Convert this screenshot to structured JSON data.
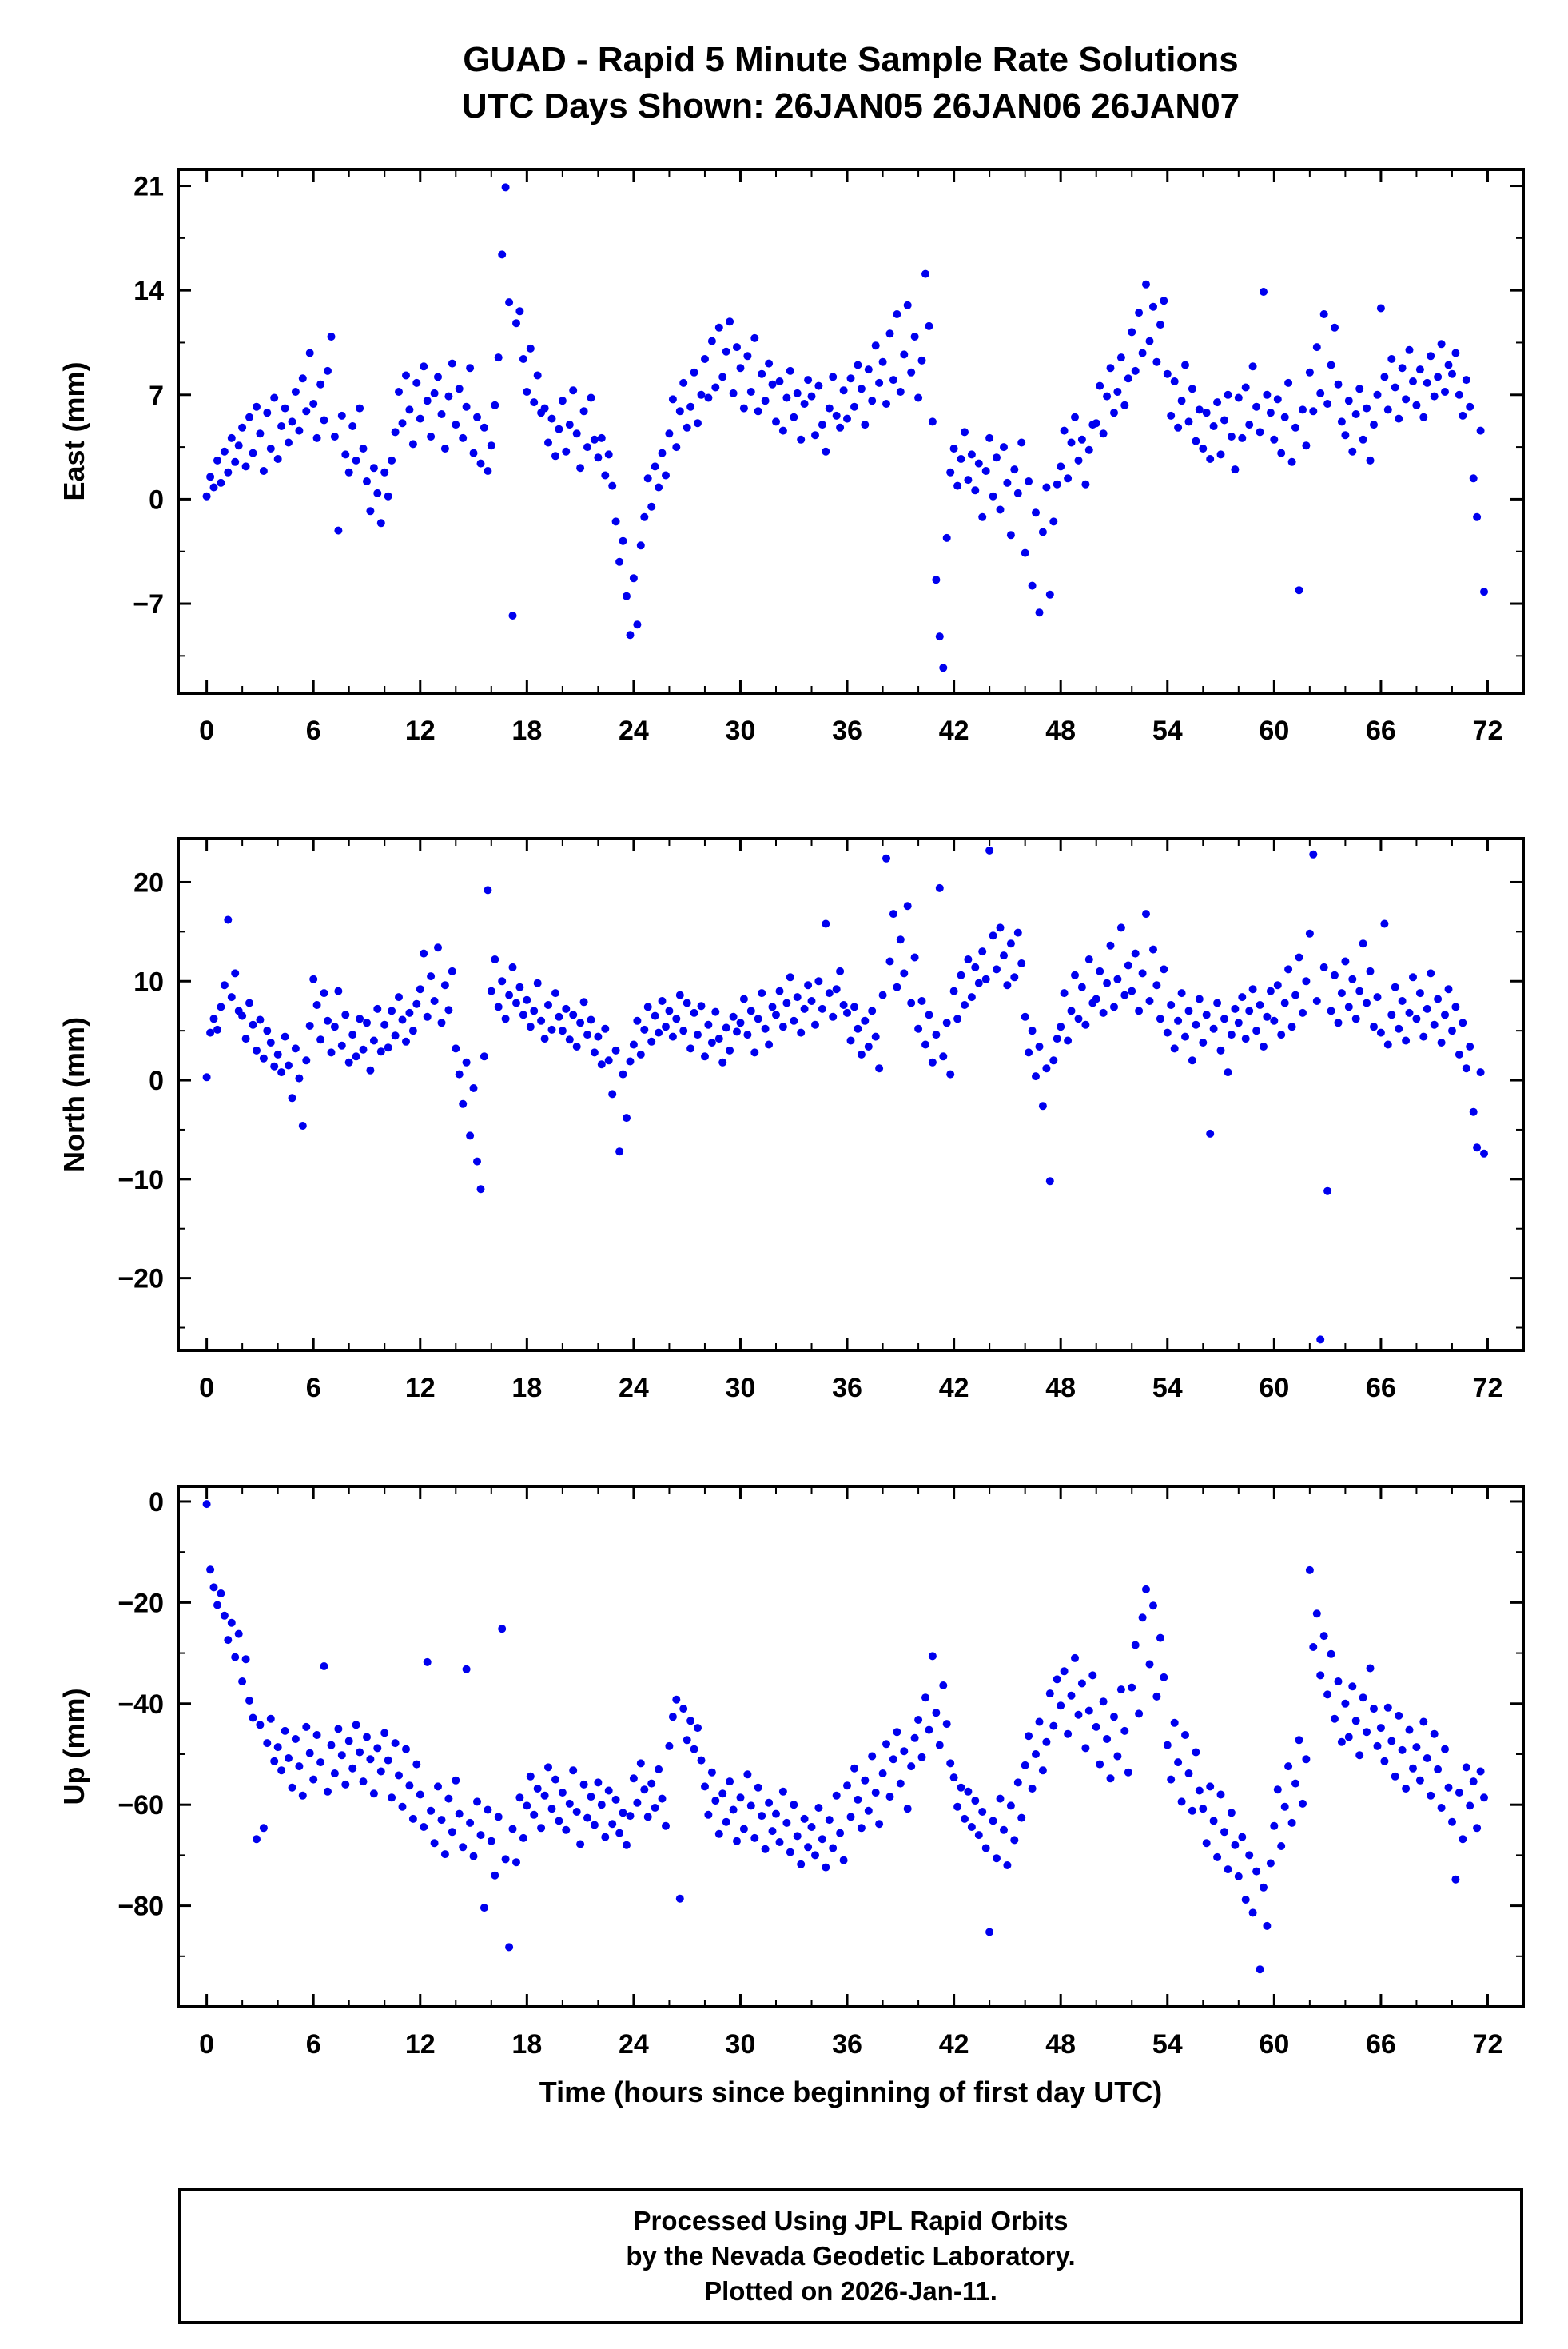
{
  "title": {
    "line1": "GUAD - Rapid 5 Minute Sample Rate Solutions",
    "line2": "UTC Days Shown:  26JAN05 26JAN06 26JAN07"
  },
  "xlabel": "Time (hours since beginning of first day UTC)",
  "footer": {
    "lines": [
      "Processed Using JPL Rapid Orbits",
      "by the Nevada Geodetic Laboratory.",
      "Plotted on 2026-Jan-11."
    ]
  },
  "style": {
    "point_color": "#0000ee",
    "point_radius": 5,
    "frame_color": "#000000",
    "marker": "filled-circle",
    "grid": false
  },
  "chart_data": [
    {
      "type": "scatter",
      "name": "east",
      "ylabel": "East (mm)",
      "xlim": [
        -1.6,
        74
      ],
      "ylim": [
        -13,
        22.1
      ],
      "x_ticks": [
        0,
        6,
        12,
        18,
        24,
        30,
        36,
        42,
        48,
        54,
        60,
        66,
        72
      ],
      "x_minor": 2,
      "y_ticks": [
        -7,
        0,
        7,
        14,
        21
      ],
      "y_minor": 3.5,
      "x_start": 0,
      "x_step": 0.2,
      "values": [
        0.2,
        1.5,
        0.8,
        2.6,
        1.1,
        3.2,
        1.8,
        4.1,
        2.5,
        3.6,
        4.8,
        2.2,
        5.5,
        3.1,
        6.2,
        4.4,
        1.9,
        5.8,
        3.4,
        6.8,
        2.7,
        4.9,
        6.1,
        3.8,
        5.2,
        7.2,
        4.6,
        8.1,
        5.9,
        9.8,
        6.4,
        4.1,
        7.7,
        5.3,
        8.6,
        10.9,
        4.2,
        -2.1,
        5.6,
        3.0,
        1.8,
        4.9,
        2.6,
        6.1,
        3.4,
        1.2,
        -0.8,
        2.1,
        0.4,
        -1.6,
        1.8,
        0.2,
        2.6,
        4.5,
        7.2,
        5.1,
        8.3,
        6.0,
        3.7,
        7.8,
        5.4,
        8.9,
        6.6,
        4.2,
        7.1,
        8.2,
        5.7,
        3.4,
        6.9,
        9.1,
        5.0,
        7.4,
        4.1,
        6.2,
        8.8,
        3.1,
        5.5,
        2.4,
        4.8,
        1.9,
        3.6,
        6.3,
        9.5,
        16.4,
        20.9,
        13.2,
        -7.8,
        11.8,
        12.6,
        9.4,
        7.2,
        10.1,
        6.5,
        8.3,
        5.8,
        6.1,
        3.8,
        5.4,
        2.9,
        4.7,
        6.6,
        3.2,
        5.0,
        7.3,
        4.4,
        2.1,
        5.9,
        3.5,
        6.8,
        4.0,
        2.8,
        4.1,
        1.6,
        3.0,
        0.9,
        -1.5,
        -4.2,
        -2.8,
        -6.5,
        -9.1,
        -5.3,
        -8.4,
        -3.1,
        -1.2,
        1.4,
        -0.5,
        2.2,
        0.8,
        3.1,
        1.6,
        4.4,
        6.7,
        3.5,
        5.9,
        7.8,
        4.8,
        6.2,
        8.5,
        5.1,
        7.0,
        9.4,
        6.8,
        10.6,
        7.5,
        11.5,
        8.2,
        9.9,
        11.9,
        7.1,
        10.2,
        8.8,
        6.1,
        9.6,
        7.2,
        10.8,
        5.9,
        8.4,
        6.6,
        9.1,
        7.7,
        5.2,
        7.9,
        4.6,
        6.8,
        8.6,
        5.5,
        7.1,
        4.0,
        6.4,
        8.0,
        6.9,
        4.3,
        7.6,
        5.0,
        3.2,
        6.1,
        8.2,
        5.6,
        4.8,
        7.3,
        5.4,
        8.1,
        6.2,
        9.0,
        7.4,
        5.0,
        8.7,
        6.6,
        10.3,
        7.8,
        9.2,
        6.4,
        11.1,
        8.0,
        12.4,
        7.2,
        9.7,
        13.0,
        8.5,
        10.9,
        6.8,
        9.3,
        15.1,
        11.6,
        5.2,
        -5.4,
        -9.2,
        -11.3,
        -2.6,
        1.8,
        3.4,
        0.9,
        2.7,
        4.5,
        1.3,
        3.0,
        0.6,
        2.4,
        -1.2,
        1.9,
        4.1,
        0.2,
        2.8,
        -0.7,
        3.5,
        1.1,
        -2.4,
        2.0,
        0.4,
        3.8,
        -3.6,
        1.2,
        -5.8,
        -0.9,
        -7.6,
        -2.2,
        0.8,
        -6.4,
        -1.5,
        1.0,
        2.2,
        4.6,
        1.4,
        3.8,
        5.5,
        2.6,
        4.0,
        1.0,
        3.3,
        5.0,
        5.1,
        7.6,
        4.4,
        6.9,
        8.8,
        5.8,
        7.2,
        9.5,
        6.3,
        8.1,
        11.2,
        8.6,
        12.5,
        9.8,
        14.4,
        10.6,
        12.9,
        9.2,
        11.7,
        13.3,
        8.4,
        5.6,
        7.9,
        4.8,
        6.6,
        9.0,
        5.2,
        7.4,
        3.9,
        6.0,
        3.4,
        5.8,
        2.7,
        4.9,
        6.5,
        3.0,
        5.3,
        7.0,
        4.2,
        2.0,
        6.8,
        4.1,
        7.5,
        5.0,
        8.9,
        6.2,
        4.5,
        13.9,
        7.0,
        5.8,
        4.0,
        6.7,
        3.1,
        5.5,
        7.8,
        2.5,
        4.8,
        -6.1,
        6.0,
        3.6,
        8.5,
        5.9,
        10.2,
        7.1,
        12.4,
        6.4,
        9.0,
        11.5,
        7.7,
        5.2,
        4.3,
        6.6,
        3.2,
        5.7,
        7.4,
        4.0,
        6.1,
        2.6,
        5.0,
        7.0,
        12.8,
        8.2,
        6.0,
        9.4,
        7.5,
        5.4,
        8.8,
        6.7,
        10.0,
        7.9,
        6.3,
        8.7,
        5.5,
        7.8,
        9.6,
        6.9,
        8.2,
        10.4,
        7.2,
        9.0,
        8.4,
        9.8,
        7.0,
        5.6,
        8.0,
        6.2,
        1.4,
        -1.2,
        4.6,
        -6.2
      ]
    },
    {
      "type": "scatter",
      "name": "north",
      "ylabel": "North (mm)",
      "xlim": [
        -1.6,
        74
      ],
      "ylim": [
        -27.3,
        24.4
      ],
      "x_ticks": [
        0,
        6,
        12,
        18,
        24,
        30,
        36,
        42,
        48,
        54,
        60,
        66,
        72
      ],
      "x_minor": 2,
      "y_ticks": [
        -20,
        -10,
        0,
        10,
        20
      ],
      "y_minor": 5,
      "x_start": 0,
      "x_step": 0.2,
      "values": [
        0.3,
        4.8,
        6.2,
        5.1,
        7.4,
        9.6,
        16.2,
        8.4,
        10.8,
        7.0,
        6.5,
        4.2,
        7.8,
        5.6,
        3.0,
        6.1,
        2.2,
        5.0,
        3.8,
        1.4,
        2.6,
        0.8,
        4.4,
        1.5,
        -1.8,
        3.2,
        0.2,
        -4.6,
        2.0,
        5.5,
        10.2,
        7.6,
        4.1,
        8.8,
        6.0,
        2.8,
        5.4,
        9.0,
        3.5,
        6.6,
        1.8,
        4.6,
        2.4,
        6.2,
        3.1,
        5.8,
        1.0,
        4.0,
        7.2,
        2.9,
        5.6,
        3.3,
        7.0,
        4.5,
        8.4,
        6.1,
        3.9,
        6.8,
        5.0,
        7.7,
        9.2,
        12.8,
        6.4,
        10.5,
        8.0,
        13.4,
        5.8,
        9.6,
        7.1,
        11.0,
        3.2,
        0.6,
        -2.4,
        1.8,
        -5.6,
        -0.8,
        -8.2,
        -11.0,
        2.4,
        19.2,
        9.0,
        12.2,
        7.4,
        10.0,
        6.2,
        8.6,
        11.4,
        7.8,
        9.4,
        6.6,
        8.1,
        5.4,
        7.0,
        9.8,
        6.0,
        4.2,
        7.6,
        5.1,
        8.8,
        6.4,
        5.0,
        7.2,
        4.1,
        6.6,
        3.4,
        5.8,
        7.9,
        4.6,
        6.1,
        2.8,
        4.4,
        1.6,
        5.2,
        2.0,
        -1.4,
        3.0,
        -7.2,
        0.6,
        -3.8,
        1.9,
        3.6,
        6.0,
        2.6,
        5.1,
        7.4,
        3.9,
        6.5,
        4.8,
        8.0,
        5.4,
        7.0,
        4.4,
        6.2,
        8.6,
        5.0,
        7.8,
        3.2,
        6.8,
        4.6,
        7.5,
        2.4,
        5.6,
        3.8,
        6.9,
        4.2,
        1.8,
        5.3,
        3.0,
        6.4,
        4.9,
        5.8,
        8.2,
        4.6,
        7.0,
        2.8,
        6.2,
        8.8,
        5.2,
        3.6,
        7.4,
        6.6,
        9.0,
        5.4,
        7.8,
        10.4,
        6.0,
        8.4,
        4.8,
        7.2,
        9.6,
        8.0,
        5.6,
        10.0,
        7.2,
        15.8,
        8.8,
        6.4,
        9.2,
        11.0,
        7.6,
        6.8,
        4.0,
        7.4,
        5.2,
        2.6,
        6.0,
        3.4,
        7.0,
        4.4,
        1.2,
        8.6,
        22.4,
        12.0,
        16.8,
        9.4,
        14.2,
        10.8,
        17.6,
        7.8,
        12.4,
        5.2,
        8.0,
        3.6,
        6.6,
        1.8,
        4.6,
        19.4,
        2.4,
        5.8,
        0.6,
        9.0,
        6.2,
        10.6,
        7.6,
        12.2,
        8.4,
        11.4,
        9.8,
        13.0,
        10.2,
        23.2,
        14.6,
        11.2,
        15.4,
        12.6,
        9.6,
        13.8,
        10.4,
        14.9,
        11.8,
        6.4,
        2.8,
        5.0,
        0.4,
        3.4,
        -2.6,
        1.2,
        -10.2,
        2.0,
        4.2,
        5.4,
        8.8,
        4.0,
        7.0,
        10.6,
        6.2,
        9.4,
        5.6,
        12.2,
        7.8,
        8.2,
        11.0,
        6.8,
        9.8,
        13.6,
        7.4,
        10.2,
        15.4,
        8.6,
        11.6,
        9.0,
        12.8,
        7.0,
        10.8,
        16.8,
        8.0,
        13.2,
        9.6,
        6.2,
        11.2,
        4.8,
        7.6,
        3.2,
        6.0,
        8.8,
        4.4,
        7.0,
        2.0,
        5.6,
        8.2,
        3.8,
        6.6,
        -5.4,
        5.2,
        7.8,
        3.0,
        6.2,
        0.8,
        4.6,
        7.2,
        5.8,
        8.4,
        4.2,
        7.0,
        9.2,
        5.0,
        7.6,
        3.4,
        6.4,
        9.0,
        6.0,
        9.6,
        4.6,
        7.8,
        11.2,
        5.4,
        8.6,
        12.4,
        6.8,
        10.0,
        14.8,
        22.8,
        8.0,
        -26.2,
        11.4,
        -11.2,
        7.0,
        10.6,
        5.8,
        8.8,
        12.0,
        7.4,
        10.2,
        6.2,
        9.0,
        13.8,
        7.8,
        11.0,
        5.4,
        8.4,
        4.8,
        15.8,
        3.6,
        6.6,
        9.4,
        5.2,
        8.0,
        4.0,
        6.8,
        10.4,
        6.2,
        8.8,
        4.4,
        7.2,
        10.8,
        5.6,
        8.2,
        3.8,
        6.6,
        9.2,
        5.0,
        7.4,
        2.6,
        5.8,
        1.2,
        3.4,
        -3.2,
        -6.8,
        0.8,
        -7.4
      ]
    },
    {
      "type": "scatter",
      "name": "up",
      "ylabel": "Up (mm)",
      "xlim": [
        -1.6,
        74
      ],
      "ylim": [
        -100,
        3
      ],
      "x_ticks": [
        0,
        6,
        12,
        18,
        24,
        30,
        36,
        42,
        48,
        54,
        60,
        66,
        72
      ],
      "x_minor": 2,
      "y_ticks": [
        -80,
        -60,
        -40,
        -20,
        0
      ],
      "y_minor": 10,
      "x_start": 0,
      "x_step": 0.2,
      "values": [
        -0.5,
        -13.5,
        -17.0,
        -20.5,
        -18.2,
        -22.6,
        -27.4,
        -24.0,
        -30.8,
        -26.2,
        -35.6,
        -31.2,
        -39.4,
        -42.8,
        -66.8,
        -44.2,
        -64.6,
        -47.8,
        -43.0,
        -51.4,
        -48.6,
        -53.2,
        -45.4,
        -50.8,
        -56.6,
        -47.0,
        -52.4,
        -58.2,
        -44.6,
        -49.8,
        -55.0,
        -46.2,
        -51.6,
        -32.6,
        -57.4,
        -48.2,
        -53.8,
        -45.0,
        -50.2,
        -56.0,
        -47.4,
        -52.8,
        -44.2,
        -49.6,
        -55.4,
        -46.6,
        -51.0,
        -57.8,
        -48.8,
        -53.4,
        -45.8,
        -51.2,
        -58.6,
        -47.8,
        -54.2,
        -60.4,
        -49.0,
        -56.2,
        -62.8,
        -52.0,
        -58.0,
        -64.4,
        -31.8,
        -61.2,
        -67.6,
        -56.4,
        -63.0,
        -69.8,
        -58.8,
        -65.4,
        -55.2,
        -61.8,
        -68.4,
        -33.2,
        -63.6,
        -70.2,
        -59.4,
        -66.0,
        -80.4,
        -61.0,
        -67.2,
        -74.0,
        -62.4,
        -25.2,
        -70.8,
        -88.2,
        -64.8,
        -71.4,
        -58.6,
        -66.6,
        -60.2,
        -54.4,
        -62.0,
        -56.8,
        -64.6,
        -58.2,
        -52.6,
        -60.8,
        -55.0,
        -63.2,
        -57.6,
        -65.0,
        -59.8,
        -53.2,
        -61.4,
        -67.8,
        -56.0,
        -62.6,
        -58.4,
        -64.0,
        -55.6,
        -60.0,
        -66.4,
        -57.2,
        -63.8,
        -59.0,
        -65.6,
        -61.6,
        -68.0,
        -62.2,
        -54.8,
        -59.6,
        -51.8,
        -57.0,
        -62.4,
        -55.8,
        -60.6,
        -53.0,
        -58.8,
        -64.2,
        -48.4,
        -42.6,
        -39.2,
        -78.6,
        -41.0,
        -47.2,
        -43.4,
        -49.0,
        -44.8,
        -51.2,
        -56.4,
        -62.0,
        -53.6,
        -59.2,
        -65.8,
        -57.8,
        -63.4,
        -55.4,
        -61.0,
        -67.2,
        -58.6,
        -64.8,
        -54.0,
        -60.2,
        -66.6,
        -56.6,
        -62.2,
        -68.8,
        -59.6,
        -65.2,
        -61.8,
        -67.4,
        -57.4,
        -63.6,
        -69.4,
        -60.0,
        -66.2,
        -71.8,
        -62.8,
        -68.4,
        -64.4,
        -70.0,
        -60.6,
        -66.8,
        -72.4,
        -63.0,
        -68.6,
        -58.2,
        -65.6,
        -71.0,
        -56.2,
        -62.4,
        -52.8,
        -59.0,
        -64.6,
        -55.2,
        -61.2,
        -50.4,
        -57.6,
        -63.8,
        -53.8,
        -48.0,
        -58.4,
        -51.0,
        -45.6,
        -55.8,
        -49.4,
        -60.8,
        -52.4,
        -46.8,
        -43.2,
        -50.6,
        -38.8,
        -45.2,
        -30.6,
        -41.8,
        -48.2,
        -36.4,
        -44.0,
        -51.8,
        -54.6,
        -60.4,
        -56.6,
        -62.8,
        -57.4,
        -64.4,
        -59.2,
        -66.0,
        -61.4,
        -68.6,
        -85.2,
        -63.2,
        -70.6,
        -58.8,
        -65.0,
        -72.0,
        -60.2,
        -67.0,
        -55.6,
        -62.6,
        -52.2,
        -46.4,
        -56.8,
        -50.0,
        -43.6,
        -53.2,
        -47.6,
        -38.0,
        -44.4,
        -35.2,
        -40.4,
        -33.6,
        -46.0,
        -38.4,
        -31.0,
        -42.2,
        -36.0,
        -48.8,
        -41.4,
        -34.4,
        -44.6,
        -52.0,
        -39.6,
        -47.0,
        -54.8,
        -42.6,
        -50.4,
        -37.2,
        -45.4,
        -53.6,
        -36.8,
        -28.4,
        -42.0,
        -23.0,
        -17.4,
        -32.2,
        -20.6,
        -38.6,
        -27.0,
        -34.8,
        -48.2,
        -55.0,
        -43.8,
        -51.6,
        -59.4,
        -46.2,
        -53.8,
        -61.2,
        -49.6,
        -57.2,
        -60.8,
        -67.6,
        -56.4,
        -63.2,
        -70.4,
        -58.0,
        -65.4,
        -72.8,
        -61.6,
        -68.0,
        -74.2,
        -66.4,
        -78.8,
        -70.0,
        -81.4,
        -73.2,
        -92.6,
        -76.4,
        -84.0,
        -71.6,
        -64.2,
        -57.0,
        -68.2,
        -60.4,
        -52.4,
        -63.6,
        -55.8,
        -47.2,
        -59.8,
        -51.0,
        -13.6,
        -28.8,
        -22.2,
        -34.4,
        -26.6,
        -38.2,
        -30.2,
        -43.0,
        -35.6,
        -47.6,
        -40.0,
        -46.6,
        -36.6,
        -43.4,
        -50.2,
        -38.8,
        -45.6,
        -33.0,
        -41.0,
        -48.4,
        -44.8,
        -51.4,
        -40.8,
        -47.4,
        -54.4,
        -42.4,
        -49.2,
        -56.8,
        -45.2,
        -52.8,
        -48.6,
        -55.2,
        -43.6,
        -50.8,
        -58.2,
        -46.0,
        -53.0,
        -60.6,
        -49.0,
        -56.6,
        -63.4,
        -74.8,
        -57.6,
        -66.8,
        -52.6,
        -60.2,
        -55.4,
        -64.6,
        -53.4,
        -58.6
      ]
    }
  ]
}
